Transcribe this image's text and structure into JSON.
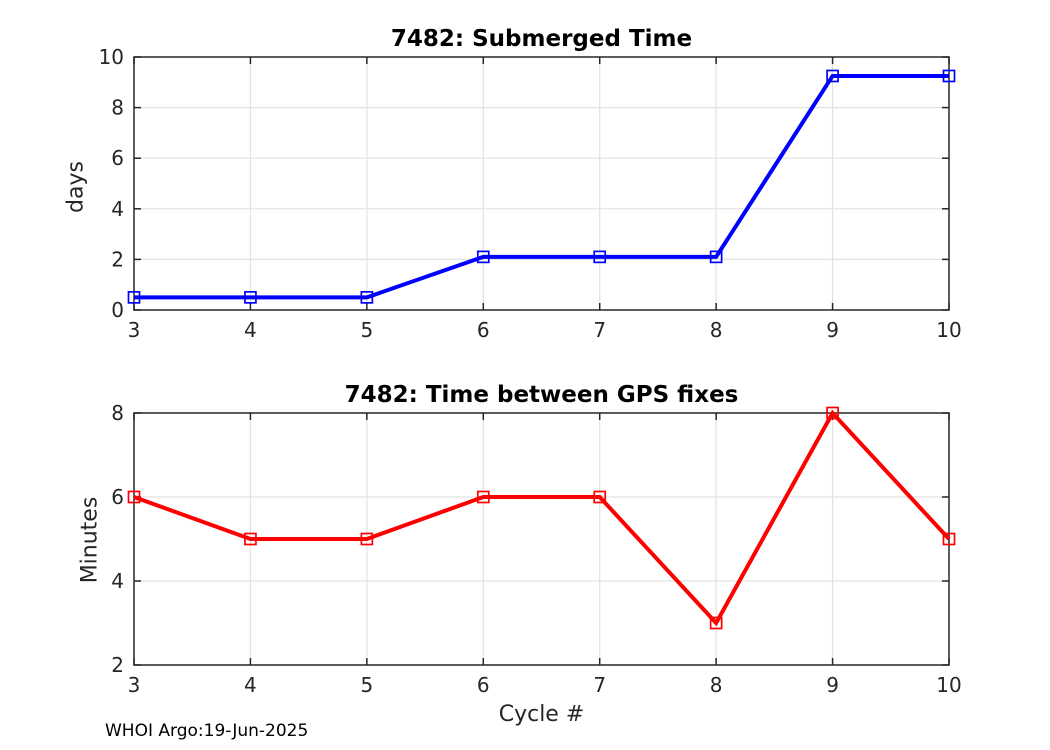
{
  "figure": {
    "footer": "WHOI Argo:19-Jun-2025"
  },
  "style": {
    "axis_color": "#262626",
    "grid_color": "#e2e2e2",
    "tick_label_color": "#262626",
    "blue": "#0000ff",
    "red": "#ff0000"
  },
  "chart_data": [
    {
      "type": "line",
      "title": "7482: Submerged Time",
      "xlabel": "",
      "ylabel": "days",
      "x": [
        3,
        4,
        5,
        6,
        7,
        8,
        9,
        10
      ],
      "series": [
        {
          "color": "#0000ff",
          "marker": "square",
          "values": [
            0.5,
            0.5,
            0.5,
            2.1,
            2.1,
            2.1,
            9.25,
            9.25
          ]
        }
      ],
      "xlim": [
        3,
        10
      ],
      "ylim": [
        0,
        10
      ],
      "xticks": [
        3,
        4,
        5,
        6,
        7,
        8,
        9,
        10
      ],
      "yticks": [
        0,
        2,
        4,
        6,
        8,
        10
      ],
      "grid": true,
      "legend": "none"
    },
    {
      "type": "line",
      "title": "7482: Time between GPS fixes",
      "xlabel": "Cycle #",
      "ylabel": "Minutes",
      "x": [
        3,
        4,
        5,
        6,
        7,
        8,
        9,
        10
      ],
      "series": [
        {
          "color": "#ff0000",
          "marker": "square",
          "values": [
            6,
            5,
            5,
            6,
            6,
            3,
            8,
            5
          ]
        }
      ],
      "xlim": [
        3,
        10
      ],
      "ylim": [
        2,
        8
      ],
      "xticks": [
        3,
        4,
        5,
        6,
        7,
        8,
        9,
        10
      ],
      "yticks": [
        2,
        4,
        6,
        8
      ],
      "grid": true,
      "legend": "none"
    }
  ]
}
